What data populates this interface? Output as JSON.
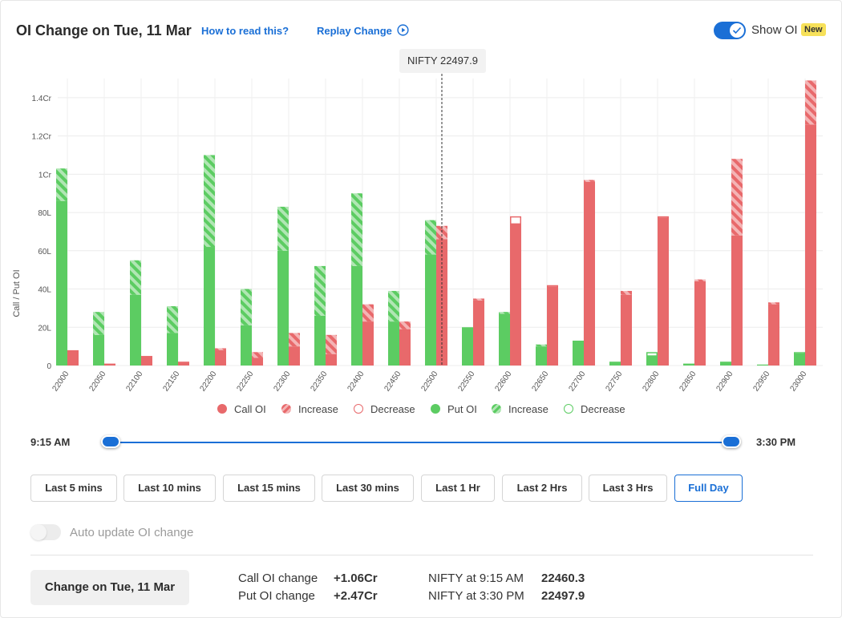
{
  "header": {
    "title": "OI Change on Tue, 11 Mar",
    "how_to_read": "How to read this?",
    "replay": "Replay Change",
    "show_oi_label": "Show OI",
    "new_badge": "New",
    "show_oi_enabled": true
  },
  "tooltip": {
    "text": "NIFTY 22497.9"
  },
  "chart_data": {
    "type": "bar",
    "xlabel": "",
    "ylabel": "Call / Put OI",
    "ylim": [
      0,
      1.5
    ],
    "y_unit": "Cr",
    "yticks": [
      {
        "value": 0,
        "label": "0"
      },
      {
        "value": 0.2,
        "label": "20L"
      },
      {
        "value": 0.4,
        "label": "40L"
      },
      {
        "value": 0.6,
        "label": "60L"
      },
      {
        "value": 0.8,
        "label": "80L"
      },
      {
        "value": 1.0,
        "label": "1Cr"
      },
      {
        "value": 1.2,
        "label": "1.2Cr"
      },
      {
        "value": 1.4,
        "label": "1.4Cr"
      }
    ],
    "spot_marker": {
      "label": "NIFTY 22497.9",
      "value": 22497.9,
      "strike_index": 10
    },
    "strikes": [
      "22000",
      "22050",
      "22100",
      "22150",
      "22200",
      "22250",
      "22300",
      "22350",
      "22400",
      "22450",
      "22500",
      "22550",
      "22600",
      "22650",
      "22700",
      "22750",
      "22800",
      "22850",
      "22900",
      "22950",
      "23000"
    ],
    "series": [
      {
        "name": "Call OI",
        "color": "#e8696b",
        "values": [
          0.08,
          0.01,
          0.05,
          0.02,
          0.08,
          0.04,
          0.1,
          0.06,
          0.23,
          0.19,
          0.66,
          0.34,
          0.74,
          0.41,
          0.96,
          0.37,
          0.77,
          0.44,
          0.68,
          0.32,
          1.26
        ]
      },
      {
        "name": "Call OI Increase",
        "color": "#e8696b",
        "values": [
          0,
          0,
          0,
          0,
          0.01,
          0.03,
          0.07,
          0.1,
          0.09,
          0.04,
          0.07,
          0.01,
          0,
          0,
          0.01,
          0.02,
          0,
          0.01,
          0.4,
          0.01,
          0.23
        ]
      },
      {
        "name": "Call OI Decrease",
        "color": "#e8696b",
        "values": [
          0,
          0,
          0,
          0,
          0,
          0,
          0,
          0,
          0,
          0,
          0,
          0,
          0.04,
          0.01,
          0,
          0,
          0.01,
          0,
          0,
          0,
          0
        ]
      },
      {
        "name": "Put OI",
        "color": "#5ccc62",
        "values": [
          0.86,
          0.16,
          0.37,
          0.17,
          0.62,
          0.21,
          0.6,
          0.26,
          0.52,
          0.23,
          0.58,
          0.2,
          0.27,
          0.1,
          0.13,
          0.02,
          0.05,
          0.01,
          0.02,
          0.005,
          0.06
        ]
      },
      {
        "name": "Put OI Increase",
        "color": "#5ccc62",
        "values": [
          0.17,
          0.12,
          0.18,
          0.14,
          0.48,
          0.19,
          0.23,
          0.26,
          0.38,
          0.16,
          0.18,
          0,
          0.01,
          0.01,
          0,
          0,
          0,
          0,
          0,
          0,
          0
        ]
      },
      {
        "name": "Put OI Decrease",
        "color": "#5ccc62",
        "values": [
          0,
          0,
          0,
          0,
          0,
          0,
          0,
          0,
          0,
          0,
          0,
          0,
          0,
          0,
          0,
          0,
          0.02,
          0,
          0,
          0,
          0.01
        ]
      }
    ]
  },
  "legend": [
    {
      "label": "Call OI",
      "style": "solid",
      "color": "#e8696b"
    },
    {
      "label": "Increase",
      "style": "hatched",
      "color": "#e8696b"
    },
    {
      "label": "Decrease",
      "style": "outline",
      "color": "#e8696b"
    },
    {
      "label": "Put OI",
      "style": "solid",
      "color": "#5ccc62"
    },
    {
      "label": "Increase",
      "style": "hatched",
      "color": "#5ccc62"
    },
    {
      "label": "Decrease",
      "style": "outline",
      "color": "#5ccc62"
    }
  ],
  "slider": {
    "start_label": "9:15 AM",
    "end_label": "3:30 PM"
  },
  "range_buttons": [
    {
      "label": "Last 5 mins",
      "active": false
    },
    {
      "label": "Last 10 mins",
      "active": false
    },
    {
      "label": "Last 15 mins",
      "active": false
    },
    {
      "label": "Last 30 mins",
      "active": false
    },
    {
      "label": "Last 1 Hr",
      "active": false
    },
    {
      "label": "Last 2 Hrs",
      "active": false
    },
    {
      "label": "Last 3 Hrs",
      "active": false
    },
    {
      "label": "Full Day",
      "active": true
    }
  ],
  "auto_update": {
    "label": "Auto update OI change",
    "enabled": false
  },
  "footer": {
    "change_button": "Change on Tue, 11 Mar",
    "call_oi_change_label": "Call OI change",
    "call_oi_change_value": "+1.06Cr",
    "put_oi_change_label": "Put OI change",
    "put_oi_change_value": "+2.47Cr",
    "nifty_open_label": "NIFTY at 9:15 AM",
    "nifty_open_value": "22460.3",
    "nifty_close_label": "NIFTY at 3:30 PM",
    "nifty_close_value": "22497.9"
  },
  "colors": {
    "accent": "#1a6fd6",
    "call": "#e8696b",
    "put": "#5ccc62",
    "call_light": "#f4b4b5",
    "put_light": "#b1e6b4"
  }
}
